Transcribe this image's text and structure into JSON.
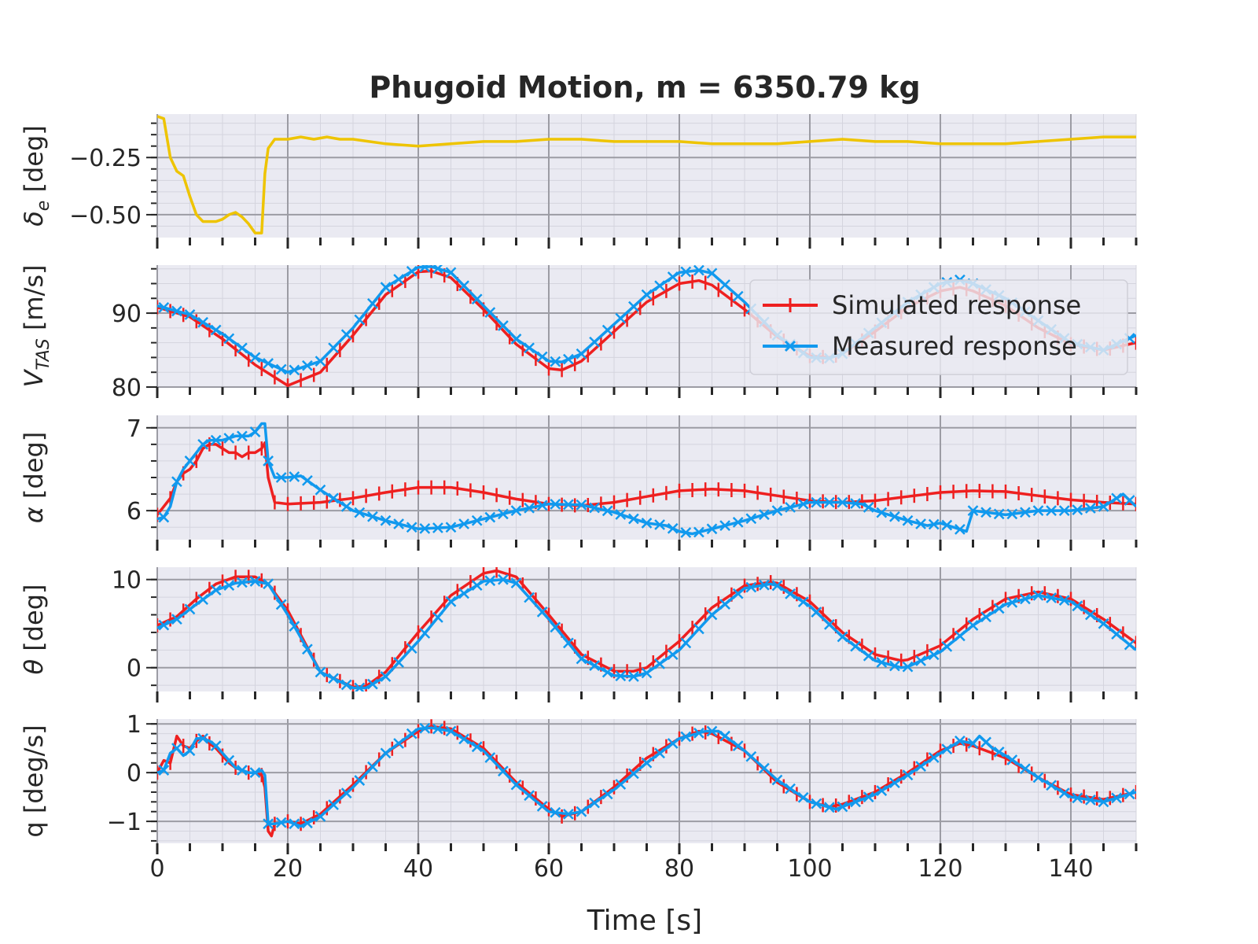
{
  "chart_data": {
    "type": "line",
    "title": "Phugoid Motion, m = 6350.79 kg",
    "xlabel": "Time [s]",
    "xlim": [
      0,
      150
    ],
    "x_ticks": [
      0,
      20,
      40,
      60,
      80,
      100,
      120,
      140
    ],
    "x_tick_labels": [
      "0",
      "20",
      "40",
      "60",
      "80",
      "100",
      "120",
      "140"
    ],
    "grid": true,
    "legend": {
      "placement": "upper-right",
      "entries": [
        "Simulated response",
        "Measured response"
      ]
    },
    "colors": {
      "simulated": "#ee2020",
      "measured": "#1199ee",
      "input": "#eec400",
      "background": "#eaeaf2"
    },
    "panels": [
      {
        "id": "de",
        "ylabel_symbol": "δ",
        "ylabel_sub": "e",
        "ylabel_rest": " [deg]",
        "ylim": [
          -0.6,
          -0.06
        ],
        "y_ticks": [
          -0.25,
          -0.5
        ],
        "y_tick_labels": [
          "−0.25",
          "−0.50"
        ],
        "series": [
          {
            "key": "input",
            "color": "#eec400",
            "x": [
              0,
              1,
              2,
              3,
              4,
              5,
              6,
              7,
              8,
              9,
              10,
              11,
              12,
              13,
              14,
              15,
              16,
              16.5,
              17,
              18,
              19,
              20,
              22,
              24,
              26,
              28,
              30,
              35,
              40,
              45,
              50,
              55,
              60,
              65,
              70,
              75,
              80,
              85,
              90,
              95,
              100,
              105,
              110,
              115,
              120,
              125,
              130,
              135,
              140,
              145,
              150
            ],
            "y": [
              -0.07,
              -0.08,
              -0.25,
              -0.31,
              -0.33,
              -0.42,
              -0.5,
              -0.53,
              -0.53,
              -0.53,
              -0.52,
              -0.5,
              -0.49,
              -0.51,
              -0.54,
              -0.58,
              -0.58,
              -0.32,
              -0.21,
              -0.17,
              -0.17,
              -0.17,
              -0.16,
              -0.17,
              -0.16,
              -0.17,
              -0.17,
              -0.19,
              -0.2,
              -0.19,
              -0.18,
              -0.18,
              -0.17,
              -0.17,
              -0.18,
              -0.18,
              -0.18,
              -0.19,
              -0.19,
              -0.19,
              -0.18,
              -0.17,
              -0.18,
              -0.18,
              -0.19,
              -0.19,
              -0.19,
              -0.18,
              -0.17,
              -0.16,
              -0.16
            ]
          }
        ]
      },
      {
        "id": "vtas",
        "ylabel_symbol": "V",
        "ylabel_sub": "TAS",
        "ylabel_rest": " [m/s]",
        "ylim": [
          80,
          96.5
        ],
        "y_ticks": [
          80,
          90
        ],
        "y_tick_labels": [
          "80",
          "90"
        ],
        "series": [
          {
            "key": "simulated",
            "color": "#ee2020",
            "x": [
              0,
              5,
              10,
              15,
              20,
              25,
              30,
              35,
              40,
              42,
              45,
              50,
              55,
              60,
              62,
              65,
              70,
              75,
              80,
              83,
              85,
              90,
              95,
              100,
              103,
              105,
              110,
              115,
              120,
              123,
              125,
              130,
              135,
              140,
              145,
              150
            ],
            "y": [
              90.8,
              89.5,
              86.5,
              83.0,
              80.2,
              82.0,
              87.0,
              92.5,
              95.6,
              95.7,
              94.8,
              90.5,
              85.8,
              82.5,
              82.3,
              83.5,
              87.5,
              91.5,
              94.0,
              94.4,
              93.8,
              90.5,
              86.8,
              84.2,
              84.0,
              84.5,
              87.5,
              90.8,
              93.0,
              93.5,
              93.0,
              91.0,
              88.0,
              85.8,
              85.0,
              86.0
            ]
          },
          {
            "key": "measured",
            "color": "#1199ee",
            "x": [
              0,
              5,
              10,
              15,
              20,
              25,
              30,
              35,
              40,
              42,
              45,
              50,
              55,
              60,
              62,
              65,
              70,
              75,
              80,
              83,
              85,
              90,
              95,
              100,
              103,
              105,
              110,
              115,
              120,
              123,
              125,
              130,
              135,
              140,
              145,
              150
            ],
            "y": [
              91.0,
              89.8,
              87.2,
              84.0,
              82.0,
              83.5,
              88.0,
              93.5,
              96.2,
              96.3,
              95.5,
              91.0,
              86.5,
              83.5,
              83.4,
              84.5,
              88.5,
              92.5,
              95.5,
              95.8,
              95.4,
              91.5,
              87.0,
              84.0,
              83.9,
              84.5,
              88.0,
              91.5,
              94.0,
              94.5,
              94.0,
              92.0,
              89.0,
              86.0,
              85.0,
              87.0
            ]
          }
        ]
      },
      {
        "id": "alpha",
        "ylabel_symbol": "α",
        "ylabel_sub": "",
        "ylabel_rest": " [deg]",
        "ylim": [
          5.65,
          7.15
        ],
        "y_ticks": [
          6,
          7
        ],
        "y_tick_labels": [
          "6",
          "7"
        ],
        "series": [
          {
            "key": "simulated",
            "color": "#ee2020",
            "x": [
              0,
              1,
              2,
              3,
              4,
              5,
              6,
              7,
              8,
              9,
              10,
              11,
              12,
              13,
              14,
              15,
              16,
              16.5,
              17,
              18,
              20,
              25,
              30,
              35,
              40,
              45,
              50,
              55,
              60,
              65,
              70,
              75,
              80,
              85,
              90,
              95,
              100,
              105,
              110,
              115,
              120,
              125,
              130,
              135,
              140,
              145,
              150
            ],
            "y": [
              5.95,
              6.05,
              6.15,
              6.35,
              6.45,
              6.5,
              6.6,
              6.75,
              6.8,
              6.8,
              6.75,
              6.7,
              6.7,
              6.65,
              6.7,
              6.7,
              6.75,
              6.82,
              6.4,
              6.1,
              6.08,
              6.1,
              6.15,
              6.22,
              6.28,
              6.28,
              6.22,
              6.14,
              6.08,
              6.06,
              6.1,
              6.17,
              6.24,
              6.26,
              6.24,
              6.18,
              6.12,
              6.1,
              6.12,
              6.17,
              6.22,
              6.24,
              6.23,
              6.18,
              6.13,
              6.1,
              6.08
            ]
          },
          {
            "key": "measured",
            "color": "#1199ee",
            "x": [
              0,
              1,
              2,
              3,
              4,
              5,
              6,
              7,
              8,
              10,
              12,
              14,
              15,
              16,
              16.5,
              17,
              18,
              20,
              22,
              25,
              28,
              30,
              35,
              40,
              45,
              50,
              55,
              60,
              65,
              70,
              75,
              78,
              80,
              82,
              85,
              90,
              95,
              100,
              102,
              105,
              108,
              110,
              115,
              118,
              120,
              122,
              124,
              125,
              130,
              135,
              140,
              145,
              148,
              150
            ],
            "y": [
              5.9,
              5.92,
              6.05,
              6.35,
              6.5,
              6.6,
              6.7,
              6.8,
              6.85,
              6.85,
              6.9,
              6.9,
              6.95,
              7.05,
              7.05,
              6.6,
              6.4,
              6.4,
              6.42,
              6.25,
              6.1,
              6.0,
              5.88,
              5.78,
              5.8,
              5.9,
              6.0,
              6.08,
              6.07,
              5.98,
              5.85,
              5.82,
              5.75,
              5.72,
              5.78,
              5.88,
              6.0,
              6.1,
              6.1,
              6.1,
              6.08,
              6.0,
              5.88,
              5.82,
              5.85,
              5.8,
              5.75,
              6.0,
              5.95,
              6.0,
              6.0,
              6.05,
              6.2,
              6.05
            ]
          }
        ]
      },
      {
        "id": "theta",
        "ylabel_symbol": "θ",
        "ylabel_sub": "",
        "ylabel_rest": " [deg]",
        "ylim": [
          -2.7,
          11.4
        ],
        "y_ticks": [
          0,
          10
        ],
        "y_tick_labels": [
          "0",
          "10"
        ],
        "series": [
          {
            "key": "simulated",
            "color": "#ee2020",
            "x": [
              0,
              3,
              6,
              9,
              12,
              15,
              17,
              20,
              25,
              30,
              32,
              35,
              40,
              45,
              50,
              52,
              55,
              60,
              65,
              70,
              73,
              75,
              80,
              85,
              90,
              94,
              95,
              100,
              105,
              110,
              114,
              115,
              120,
              125,
              130,
              135,
              140,
              145,
              150
            ],
            "y": [
              4.8,
              5.8,
              7.8,
              9.5,
              10.3,
              10.3,
              9.5,
              6.5,
              -0.5,
              -2.2,
              -2.1,
              -0.5,
              4.0,
              8.2,
              10.7,
              11.0,
              10.3,
              6.0,
              1.5,
              -0.4,
              -0.4,
              0.0,
              3.0,
              6.8,
              9.3,
              9.7,
              9.6,
              7.5,
              4.0,
              1.5,
              0.8,
              0.9,
              2.5,
              5.5,
              7.8,
              8.6,
              7.8,
              5.5,
              2.8
            ]
          },
          {
            "key": "measured",
            "color": "#1199ee",
            "x": [
              0,
              3,
              6,
              9,
              12,
              15,
              17,
              20,
              25,
              30,
              32,
              35,
              40,
              45,
              50,
              53,
              55,
              60,
              65,
              70,
              73,
              75,
              80,
              85,
              90,
              94,
              95,
              100,
              105,
              110,
              114,
              115,
              120,
              125,
              130,
              135,
              140,
              145,
              150
            ],
            "y": [
              4.5,
              5.5,
              7.2,
              8.8,
              9.6,
              9.8,
              9.5,
              6.0,
              -0.5,
              -2.3,
              -2.3,
              -1.0,
              3.0,
              7.5,
              9.8,
              10.0,
              9.6,
              5.5,
              1.0,
              -0.9,
              -1.0,
              -0.6,
              2.0,
              6.0,
              9.0,
              9.5,
              9.3,
              7.0,
              3.5,
              0.8,
              0.0,
              0.1,
              1.8,
              4.8,
              7.2,
              8.2,
              7.5,
              5.0,
              2.0
            ]
          }
        ]
      },
      {
        "id": "q",
        "ylabel_symbol": "q",
        "ylabel_sub": "",
        "ylabel_rest": " [deg/s]",
        "ylim": [
          -1.45,
          1.1
        ],
        "y_ticks": [
          1,
          0,
          -1
        ],
        "y_tick_labels": [
          "1",
          "0",
          "−1"
        ],
        "series": [
          {
            "key": "simulated",
            "color": "#ee2020",
            "x": [
              0,
              1,
              2,
              3,
              4,
              5,
              6,
              7,
              8,
              9,
              10,
              11,
              12,
              13,
              14,
              15,
              16,
              16.5,
              17,
              17.5,
              18,
              20,
              22,
              25,
              30,
              35,
              40,
              42,
              45,
              50,
              55,
              60,
              62,
              65,
              70,
              75,
              80,
              83,
              85,
              90,
              95,
              100,
              103,
              105,
              110,
              115,
              120,
              123,
              125,
              130,
              135,
              140,
              145,
              150
            ],
            "y": [
              0.0,
              0.25,
              0.2,
              0.75,
              0.55,
              0.5,
              0.65,
              0.75,
              0.6,
              0.5,
              0.35,
              0.2,
              0.1,
              0.05,
              0.0,
              0.0,
              -0.05,
              -0.3,
              -1.2,
              -1.3,
              -1.05,
              -1.0,
              -1.05,
              -0.85,
              -0.25,
              0.4,
              0.85,
              0.95,
              0.9,
              0.5,
              -0.2,
              -0.75,
              -0.9,
              -0.8,
              -0.3,
              0.3,
              0.7,
              0.85,
              0.8,
              0.45,
              -0.2,
              -0.6,
              -0.7,
              -0.65,
              -0.4,
              0.0,
              0.45,
              0.6,
              0.55,
              0.3,
              -0.1,
              -0.45,
              -0.55,
              -0.4
            ]
          },
          {
            "key": "measured",
            "color": "#1199ee",
            "x": [
              0,
              1,
              2,
              3,
              4,
              5,
              6,
              7,
              8,
              9,
              10,
              11,
              12,
              13,
              14,
              15,
              16,
              16.5,
              17,
              18,
              20,
              22,
              25,
              30,
              35,
              40,
              42,
              45,
              50,
              55,
              60,
              63,
              65,
              70,
              75,
              80,
              84,
              86,
              90,
              95,
              100,
              104,
              105,
              110,
              115,
              120,
              123,
              125,
              126,
              128,
              130,
              135,
              140,
              145,
              150
            ],
            "y": [
              0.0,
              0.05,
              0.4,
              0.5,
              0.35,
              0.45,
              0.7,
              0.7,
              0.65,
              0.55,
              0.4,
              0.25,
              0.1,
              0.05,
              0.0,
              0.0,
              0.05,
              -0.05,
              -1.05,
              -1.05,
              -1.0,
              -1.1,
              -0.9,
              -0.3,
              0.4,
              0.9,
              0.92,
              0.85,
              0.45,
              -0.25,
              -0.8,
              -0.85,
              -0.8,
              -0.35,
              0.2,
              0.7,
              0.85,
              0.85,
              0.45,
              -0.15,
              -0.6,
              -0.75,
              -0.7,
              -0.45,
              -0.05,
              0.4,
              0.65,
              0.6,
              0.75,
              0.5,
              0.35,
              -0.1,
              -0.5,
              -0.6,
              -0.4
            ]
          }
        ]
      }
    ]
  }
}
